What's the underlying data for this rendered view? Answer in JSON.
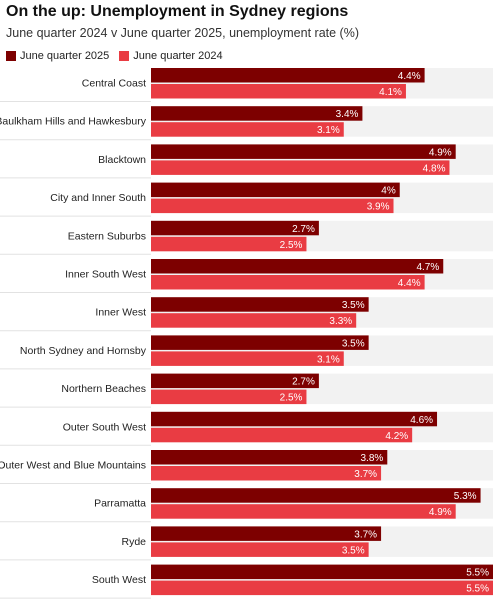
{
  "title": "On the up: Unemployment in Sydney regions",
  "subtitle": "June quarter 2024 v June quarter 2025, unemployment rate (%)",
  "colors": {
    "series_2025": "#7d0000",
    "series_2024": "#e93c43",
    "row_background": "#f2f2f2",
    "label_text": "#ffffff"
  },
  "chart_data": {
    "type": "bar",
    "orientation": "horizontal",
    "title": "On the up: Unemployment in Sydney regions",
    "subtitle": "June quarter 2024 v June quarter 2025, unemployment rate (%)",
    "xlim": [
      0,
      5.5
    ],
    "grid": false,
    "legend": "top-left",
    "value_suffix": "%",
    "categories": [
      "Central Coast",
      "Baulkham Hills and Hawkesbury",
      "Blacktown",
      "City and Inner South",
      "Eastern Suburbs",
      "Inner South West",
      "Inner West",
      "North Sydney and Hornsby",
      "Northern Beaches",
      "Outer South West",
      "Outer West and Blue Mountains",
      "Parramatta",
      "Ryde",
      "South West"
    ],
    "series": [
      {
        "name": "June quarter 2025",
        "values": [
          4.4,
          3.4,
          4.9,
          4,
          2.7,
          4.7,
          3.5,
          3.5,
          2.7,
          4.6,
          3.8,
          5.3,
          3.7,
          5.5
        ]
      },
      {
        "name": "June quarter 2024",
        "values": [
          4.1,
          3.1,
          4.8,
          3.9,
          2.5,
          4.4,
          3.3,
          3.1,
          2.5,
          4.2,
          3.7,
          4.9,
          3.5,
          5.5
        ]
      }
    ]
  }
}
